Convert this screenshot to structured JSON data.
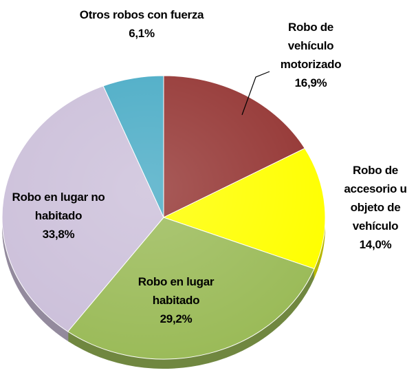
{
  "chart_data": {
    "type": "pie",
    "categories": [
      "Robo de vehículo motorizado",
      "Robo de accesorio u objeto de vehículo",
      "Robo en lugar habitado",
      "Robo en lugar no habitado",
      "Otros robos con fuerza"
    ],
    "values": [
      16.9,
      14.0,
      29.2,
      33.8,
      6.1
    ],
    "value_labels": [
      "16,9%",
      "14,0%",
      "29,2%",
      "33,8%",
      "6,1%"
    ],
    "colors": [
      "#953735",
      "#ffff00",
      "#9bbb59",
      "#ccc0da",
      "#4bacc6"
    ]
  }
}
